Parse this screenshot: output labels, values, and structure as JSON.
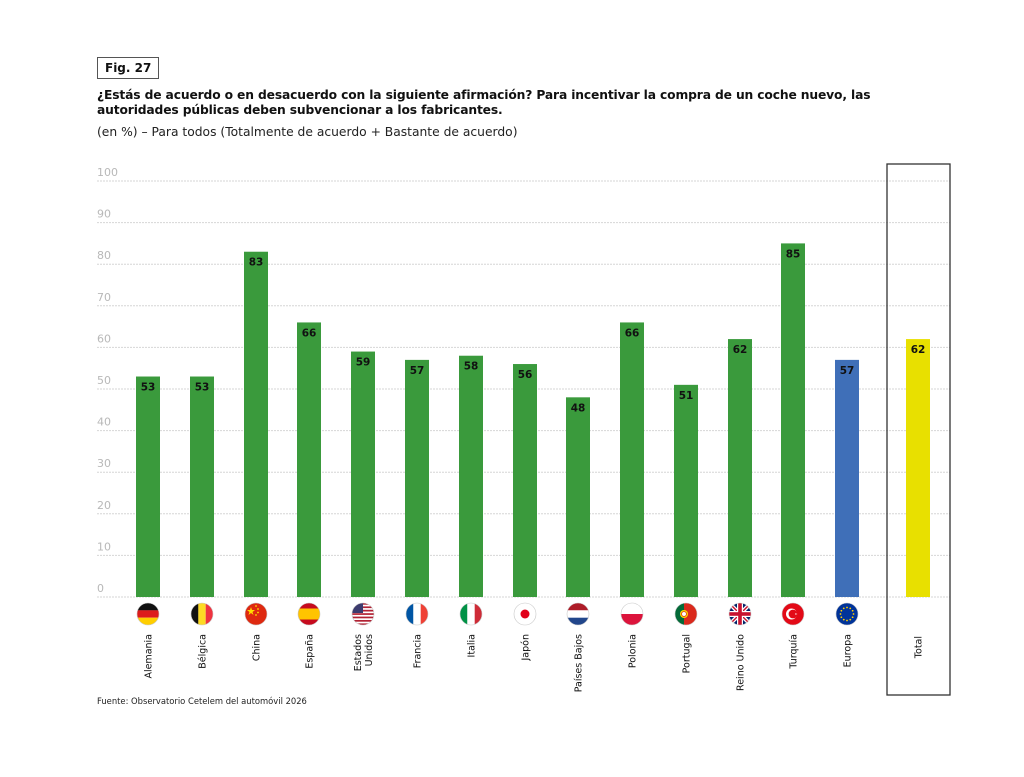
{
  "figure": {
    "label": "Fig. 27",
    "title": "¿Estás de acuerdo o en desacuerdo con la siguiente afirmación? Para incentivar la compra de un coche nuevo, las autoridades públicas deben subvencionar a los fabricantes.",
    "subtitle": "(en %) – Para todos (Totalmente de acuerdo + Bastante de acuerdo)",
    "source": "Fuente: Observatorio Cetelem del automóvil 2026"
  },
  "colors": {
    "country": "#3a9a3c",
    "europe": "#3f6fb8",
    "total": "#e8e000",
    "grid": "#d6d6d6",
    "tick": "#b8b8b8"
  },
  "chart_data": {
    "type": "bar",
    "title": "¿Estás de acuerdo o en desacuerdo con la siguiente afirmación? Para incentivar la compra de un coche nuevo, las autoridades públicas deben subvencionar a los fabricantes.",
    "subtitle": "(en %) – Para todos (Totalmente de acuerdo + Bastante de acuerdo)",
    "xlabel": "",
    "ylabel": "",
    "ylim": [
      0,
      100
    ],
    "yticks": [
      0,
      10,
      20,
      30,
      40,
      50,
      60,
      70,
      80,
      90,
      100
    ],
    "grid": true,
    "categories": [
      {
        "label": [
          "Alemania"
        ],
        "value": 53,
        "group": "country",
        "flag": "germany-flag-icon"
      },
      {
        "label": [
          "Bélgica"
        ],
        "value": 53,
        "group": "country",
        "flag": "belgium-flag-icon"
      },
      {
        "label": [
          "China"
        ],
        "value": 83,
        "group": "country",
        "flag": "china-flag-icon"
      },
      {
        "label": [
          "España"
        ],
        "value": 66,
        "group": "country",
        "flag": "spain-flag-icon"
      },
      {
        "label": [
          "Estados",
          "Unidos"
        ],
        "value": 59,
        "group": "country",
        "flag": "usa-flag-icon"
      },
      {
        "label": [
          "Francia"
        ],
        "value": 57,
        "group": "country",
        "flag": "france-flag-icon"
      },
      {
        "label": [
          "Italia"
        ],
        "value": 58,
        "group": "country",
        "flag": "italy-flag-icon"
      },
      {
        "label": [
          "Japón"
        ],
        "value": 56,
        "group": "country",
        "flag": "japan-flag-icon"
      },
      {
        "label": [
          "Países Bajos"
        ],
        "value": 48,
        "group": "country",
        "flag": "netherlands-flag-icon"
      },
      {
        "label": [
          "Polonia"
        ],
        "value": 66,
        "group": "country",
        "flag": "poland-flag-icon"
      },
      {
        "label": [
          "Portugal"
        ],
        "value": 51,
        "group": "country",
        "flag": "portugal-flag-icon"
      },
      {
        "label": [
          "Reino Unido"
        ],
        "value": 62,
        "group": "country",
        "flag": "uk-flag-icon"
      },
      {
        "label": [
          "Turquía"
        ],
        "value": 85,
        "group": "country",
        "flag": "turkey-flag-icon"
      },
      {
        "label": [
          "Europa"
        ],
        "value": 57,
        "group": "europe",
        "flag": "eu-flag-icon"
      },
      {
        "label": [
          "Total"
        ],
        "value": 62,
        "group": "total",
        "flag": ""
      }
    ]
  }
}
